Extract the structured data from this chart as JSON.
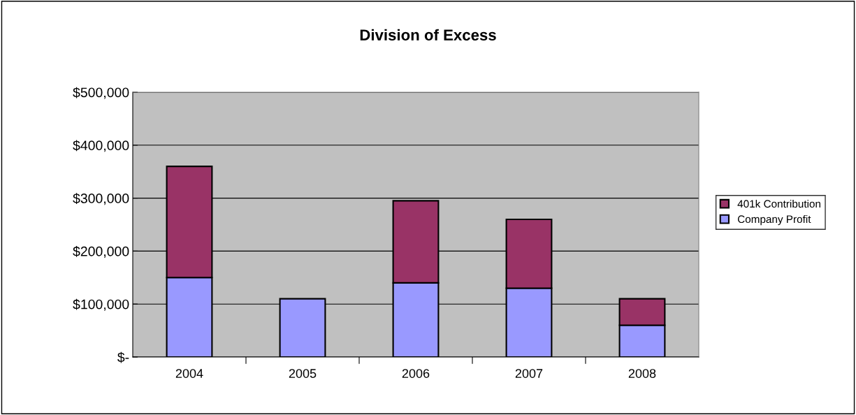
{
  "chart_data": {
    "type": "bar",
    "title": "Division of Excess",
    "stacked": true,
    "categories": [
      "2004",
      "2005",
      "2006",
      "2007",
      "2008"
    ],
    "series": [
      {
        "name": "Company Profit",
        "color": "#9999ff",
        "values": [
          150000,
          110000,
          140000,
          130000,
          60000
        ]
      },
      {
        "name": "401k Contribution",
        "color": "#993366",
        "values": [
          210000,
          null,
          155000,
          130000,
          50000
        ]
      }
    ],
    "ylim": [
      0,
      500000
    ],
    "yticks": [
      {
        "value": 0,
        "label": "$-"
      },
      {
        "value": 100000,
        "label": "$100,000"
      },
      {
        "value": 200000,
        "label": "$200,000"
      },
      {
        "value": 300000,
        "label": "$300,000"
      },
      {
        "value": 400000,
        "label": "$400,000"
      },
      {
        "value": 500000,
        "label": "$500,000"
      }
    ],
    "grid": "y",
    "legend": "right"
  }
}
